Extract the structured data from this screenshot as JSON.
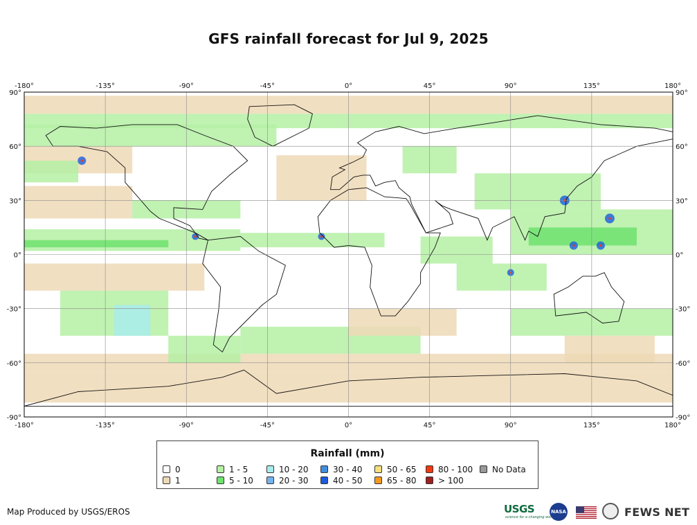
{
  "title": "GFS rainfall forecast for Jul 9, 2025",
  "map": {
    "lon_labels": [
      "-180°",
      "-135°",
      "-90°",
      "-45°",
      "0°",
      "45°",
      "90°",
      "135°",
      "180°"
    ],
    "lat_labels": [
      "90°",
      "60°",
      "30°",
      "0°",
      "-30°",
      "-60°",
      "-90°"
    ],
    "extent": {
      "lon": [
        -180,
        180
      ],
      "lat": [
        -90,
        90
      ]
    },
    "grid": true
  },
  "legend": {
    "title": "Rainfall (mm)",
    "items": [
      {
        "label": "0",
        "color": "#ffffff"
      },
      {
        "label": "1",
        "color": "#eed9b6"
      },
      {
        "label": "1 - 5",
        "color": "#b5f0a5"
      },
      {
        "label": "5 - 10",
        "color": "#6fe26f"
      },
      {
        "label": "10 - 20",
        "color": "#a8ecec"
      },
      {
        "label": "20 - 30",
        "color": "#74b4ec"
      },
      {
        "label": "30 - 40",
        "color": "#3f8ee0"
      },
      {
        "label": "40 - 50",
        "color": "#1c5be0"
      },
      {
        "label": "50 - 65",
        "color": "#f5e07a"
      },
      {
        "label": "65 - 80",
        "color": "#f59a1c"
      },
      {
        "label": "80 - 100",
        "color": "#f23a10"
      },
      {
        "label": "> 100",
        "color": "#a01f1f"
      },
      {
        "label": "No Data",
        "color": "#999999"
      }
    ]
  },
  "credit": "Map Produced by USGS/EROS",
  "logos": {
    "usgs": "USGS",
    "usgs_tagline": "science for a changing world",
    "nasa": "NASA",
    "fews": "FEWS NET"
  }
}
